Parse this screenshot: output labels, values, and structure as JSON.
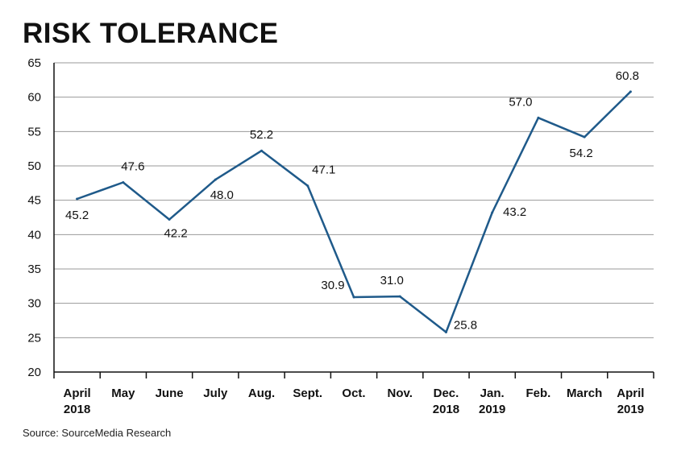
{
  "title": "RISK TOLERANCE",
  "source": "Source: SourceMedia Research",
  "colors": {
    "line": "#1f5a8a",
    "grid": "#999999",
    "axis": "#111111"
  },
  "chart_data": {
    "type": "line",
    "title": "RISK TOLERANCE",
    "xlabel": "",
    "ylabel": "",
    "ylim": [
      20,
      65
    ],
    "yticks": [
      20,
      25,
      30,
      35,
      40,
      45,
      50,
      55,
      60,
      65
    ],
    "grid": true,
    "categories": [
      [
        "April",
        "2018"
      ],
      [
        "May"
      ],
      [
        "June"
      ],
      [
        "July"
      ],
      [
        "Aug."
      ],
      [
        "Sept."
      ],
      [
        "Oct."
      ],
      [
        "Nov."
      ],
      [
        "Dec.",
        "2018"
      ],
      [
        "Jan.",
        "2019"
      ],
      [
        "Feb."
      ],
      [
        "March"
      ],
      [
        "April",
        "2019"
      ]
    ],
    "values": [
      45.2,
      47.6,
      42.2,
      48.0,
      52.2,
      47.1,
      30.9,
      31.0,
      25.8,
      43.2,
      57.0,
      54.2,
      60.8
    ],
    "data_labels": [
      "45.2",
      "47.6",
      "42.2",
      "48.0",
      "52.2",
      "47.1",
      "30.9",
      "31.0",
      "25.8",
      "43.2",
      "57.0",
      "54.2",
      "60.8"
    ]
  }
}
